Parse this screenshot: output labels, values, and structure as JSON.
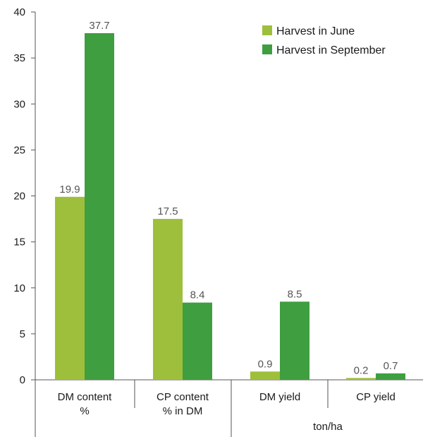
{
  "chart_data": {
    "type": "bar",
    "categories": [
      {
        "lines": [
          "DM content",
          "%"
        ]
      },
      {
        "lines": [
          "CP content",
          "% in DM"
        ]
      },
      {
        "lines": [
          "DM yield"
        ]
      },
      {
        "lines": [
          "CP yield"
        ]
      }
    ],
    "group_label": "ton/ha",
    "series": [
      {
        "name": "Harvest in June",
        "color": "#9dbf3b",
        "values": [
          19.9,
          17.5,
          0.9,
          0.2
        ]
      },
      {
        "name": "Harvest in September",
        "color": "#3f9e3f",
        "values": [
          37.7,
          8.4,
          8.5,
          0.7
        ]
      }
    ],
    "ylim": [
      0,
      40
    ],
    "yticks": [
      0,
      5,
      10,
      15,
      20,
      25,
      30,
      35,
      40
    ],
    "legend": "top-right",
    "grid": false
  }
}
